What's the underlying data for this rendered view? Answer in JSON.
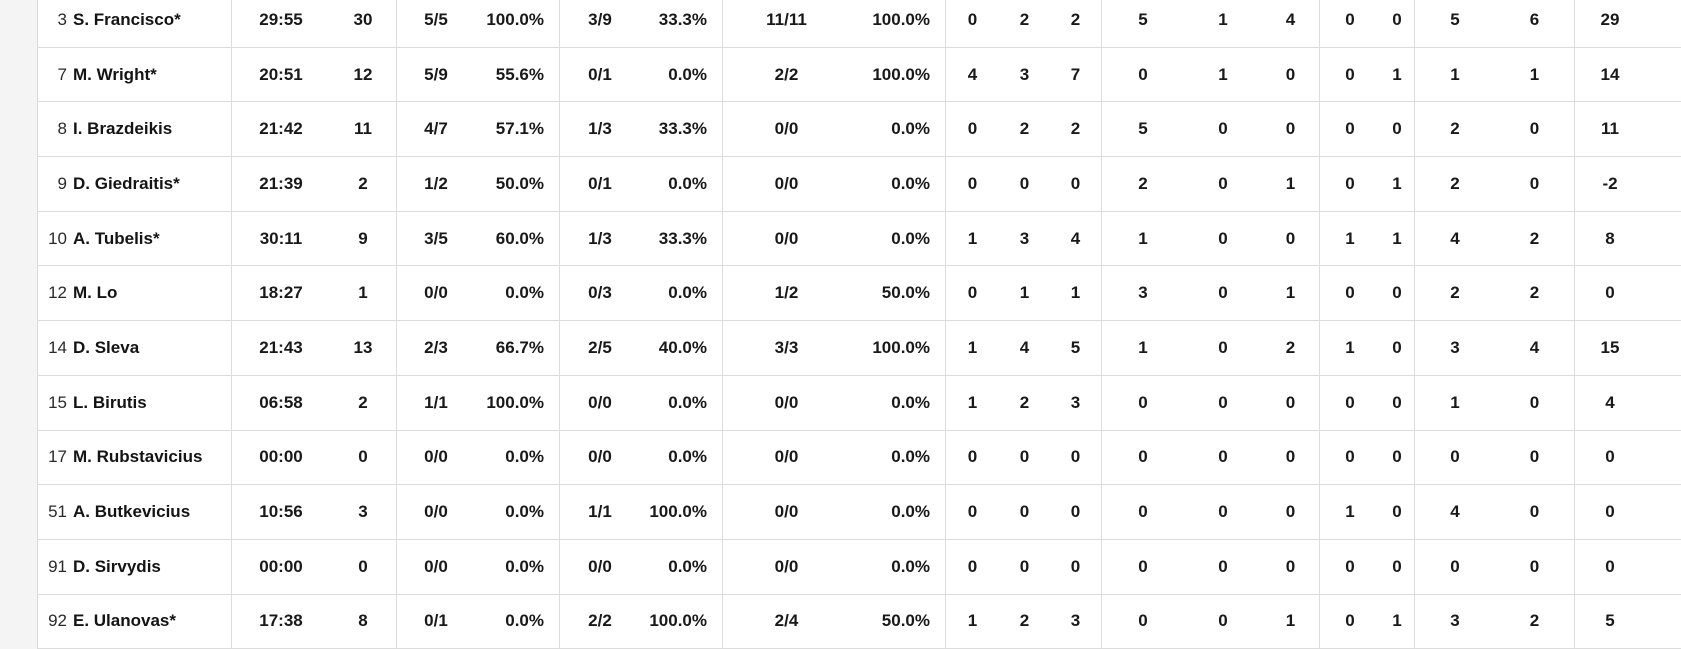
{
  "table": {
    "kind": "basketball-box-score",
    "stat_fields": [
      "min",
      "pts",
      "fg2",
      "fg2_pct",
      "fg3",
      "fg3_pct",
      "ft",
      "ft_pct",
      "reb_o",
      "reb_d",
      "reb_t",
      "ast",
      "stl",
      "tov",
      "blk_fv",
      "blk_ag",
      "foul_cm",
      "foul_rv",
      "pir"
    ],
    "players": [
      {
        "number": "3",
        "name": "S. Francisco*",
        "min": "29:55",
        "pts": "30",
        "fg2": "5/5",
        "fg2_pct": "100.0%",
        "fg3": "3/9",
        "fg3_pct": "33.3%",
        "ft": "11/11",
        "ft_pct": "100.0%",
        "reb_o": "0",
        "reb_d": "2",
        "reb_t": "2",
        "ast": "5",
        "stl": "1",
        "tov": "4",
        "blk_fv": "0",
        "blk_ag": "0",
        "foul_cm": "5",
        "foul_rv": "6",
        "pir": "29"
      },
      {
        "number": "7",
        "name": "M. Wright*",
        "min": "20:51",
        "pts": "12",
        "fg2": "5/9",
        "fg2_pct": "55.6%",
        "fg3": "0/1",
        "fg3_pct": "0.0%",
        "ft": "2/2",
        "ft_pct": "100.0%",
        "reb_o": "4",
        "reb_d": "3",
        "reb_t": "7",
        "ast": "0",
        "stl": "1",
        "tov": "0",
        "blk_fv": "0",
        "blk_ag": "1",
        "foul_cm": "1",
        "foul_rv": "1",
        "pir": "14"
      },
      {
        "number": "8",
        "name": "I. Brazdeikis",
        "min": "21:42",
        "pts": "11",
        "fg2": "4/7",
        "fg2_pct": "57.1%",
        "fg3": "1/3",
        "fg3_pct": "33.3%",
        "ft": "0/0",
        "ft_pct": "0.0%",
        "reb_o": "0",
        "reb_d": "2",
        "reb_t": "2",
        "ast": "5",
        "stl": "0",
        "tov": "0",
        "blk_fv": "0",
        "blk_ag": "0",
        "foul_cm": "2",
        "foul_rv": "0",
        "pir": "11"
      },
      {
        "number": "9",
        "name": "D. Giedraitis*",
        "min": "21:39",
        "pts": "2",
        "fg2": "1/2",
        "fg2_pct": "50.0%",
        "fg3": "0/1",
        "fg3_pct": "0.0%",
        "ft": "0/0",
        "ft_pct": "0.0%",
        "reb_o": "0",
        "reb_d": "0",
        "reb_t": "0",
        "ast": "2",
        "stl": "0",
        "tov": "1",
        "blk_fv": "0",
        "blk_ag": "1",
        "foul_cm": "2",
        "foul_rv": "0",
        "pir": "-2"
      },
      {
        "number": "10",
        "name": "A. Tubelis*",
        "min": "30:11",
        "pts": "9",
        "fg2": "3/5",
        "fg2_pct": "60.0%",
        "fg3": "1/3",
        "fg3_pct": "33.3%",
        "ft": "0/0",
        "ft_pct": "0.0%",
        "reb_o": "1",
        "reb_d": "3",
        "reb_t": "4",
        "ast": "1",
        "stl": "0",
        "tov": "0",
        "blk_fv": "1",
        "blk_ag": "1",
        "foul_cm": "4",
        "foul_rv": "2",
        "pir": "8"
      },
      {
        "number": "12",
        "name": "M. Lo",
        "min": "18:27",
        "pts": "1",
        "fg2": "0/0",
        "fg2_pct": "0.0%",
        "fg3": "0/3",
        "fg3_pct": "0.0%",
        "ft": "1/2",
        "ft_pct": "50.0%",
        "reb_o": "0",
        "reb_d": "1",
        "reb_t": "1",
        "ast": "3",
        "stl": "0",
        "tov": "1",
        "blk_fv": "0",
        "blk_ag": "0",
        "foul_cm": "2",
        "foul_rv": "2",
        "pir": "0"
      },
      {
        "number": "14",
        "name": "D. Sleva",
        "min": "21:43",
        "pts": "13",
        "fg2": "2/3",
        "fg2_pct": "66.7%",
        "fg3": "2/5",
        "fg3_pct": "40.0%",
        "ft": "3/3",
        "ft_pct": "100.0%",
        "reb_o": "1",
        "reb_d": "4",
        "reb_t": "5",
        "ast": "1",
        "stl": "0",
        "tov": "2",
        "blk_fv": "1",
        "blk_ag": "0",
        "foul_cm": "3",
        "foul_rv": "4",
        "pir": "15"
      },
      {
        "number": "15",
        "name": "L. Birutis",
        "min": "06:58",
        "pts": "2",
        "fg2": "1/1",
        "fg2_pct": "100.0%",
        "fg3": "0/0",
        "fg3_pct": "0.0%",
        "ft": "0/0",
        "ft_pct": "0.0%",
        "reb_o": "1",
        "reb_d": "2",
        "reb_t": "3",
        "ast": "0",
        "stl": "0",
        "tov": "0",
        "blk_fv": "0",
        "blk_ag": "0",
        "foul_cm": "1",
        "foul_rv": "0",
        "pir": "4"
      },
      {
        "number": "17",
        "name": "M. Rubstavicius",
        "min": "00:00",
        "pts": "0",
        "fg2": "0/0",
        "fg2_pct": "0.0%",
        "fg3": "0/0",
        "fg3_pct": "0.0%",
        "ft": "0/0",
        "ft_pct": "0.0%",
        "reb_o": "0",
        "reb_d": "0",
        "reb_t": "0",
        "ast": "0",
        "stl": "0",
        "tov": "0",
        "blk_fv": "0",
        "blk_ag": "0",
        "foul_cm": "0",
        "foul_rv": "0",
        "pir": "0"
      },
      {
        "number": "51",
        "name": "A. Butkevicius",
        "min": "10:56",
        "pts": "3",
        "fg2": "0/0",
        "fg2_pct": "0.0%",
        "fg3": "1/1",
        "fg3_pct": "100.0%",
        "ft": "0/0",
        "ft_pct": "0.0%",
        "reb_o": "0",
        "reb_d": "0",
        "reb_t": "0",
        "ast": "0",
        "stl": "0",
        "tov": "0",
        "blk_fv": "1",
        "blk_ag": "0",
        "foul_cm": "4",
        "foul_rv": "0",
        "pir": "0"
      },
      {
        "number": "91",
        "name": "D. Sirvydis",
        "min": "00:00",
        "pts": "0",
        "fg2": "0/0",
        "fg2_pct": "0.0%",
        "fg3": "0/0",
        "fg3_pct": "0.0%",
        "ft": "0/0",
        "ft_pct": "0.0%",
        "reb_o": "0",
        "reb_d": "0",
        "reb_t": "0",
        "ast": "0",
        "stl": "0",
        "tov": "0",
        "blk_fv": "0",
        "blk_ag": "0",
        "foul_cm": "0",
        "foul_rv": "0",
        "pir": "0"
      },
      {
        "number": "92",
        "name": "E. Ulanovas*",
        "min": "17:38",
        "pts": "8",
        "fg2": "0/1",
        "fg2_pct": "0.0%",
        "fg3": "2/2",
        "fg3_pct": "100.0%",
        "ft": "2/4",
        "ft_pct": "50.0%",
        "reb_o": "1",
        "reb_d": "2",
        "reb_t": "3",
        "ast": "0",
        "stl": "0",
        "tov": "1",
        "blk_fv": "0",
        "blk_ag": "1",
        "foul_cm": "3",
        "foul_rv": "2",
        "pir": "5"
      }
    ]
  },
  "colors": {
    "row_border": "#dcdcdc",
    "gutter_background": "#f4f4f4",
    "text": "#191919"
  }
}
